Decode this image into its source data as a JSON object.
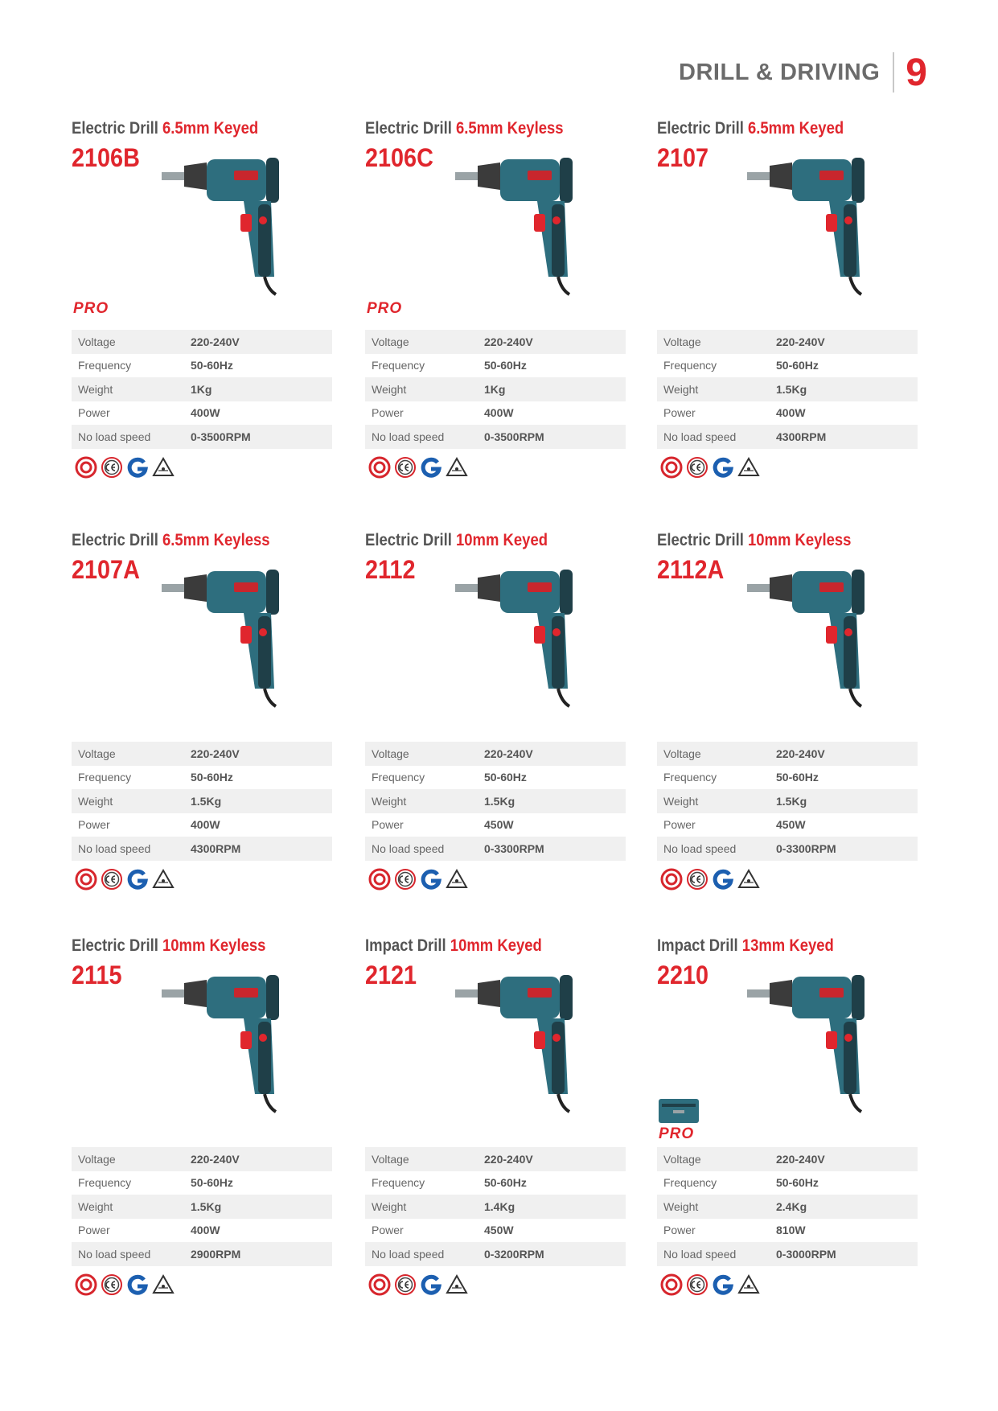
{
  "header": {
    "section_title": "DRILL & DRIVING",
    "page_number": "9"
  },
  "spec_labels": {
    "voltage": "Voltage",
    "frequency": "Frequency",
    "weight": "Weight",
    "power": "Power",
    "no_load_speed": "No load speed"
  },
  "pro_badge_text": "PRO",
  "products": [
    {
      "type": "Electric Drill",
      "spec": "6.5mm Keyed",
      "model": "2106B",
      "pro": true,
      "voltage": "220-240V",
      "frequency": "50-60Hz",
      "weight": "1Kg",
      "power": "400W",
      "no_load_speed": "0-3500RPM"
    },
    {
      "type": "Electric Drill",
      "spec": "6.5mm Keyless",
      "model": "2106C",
      "pro": true,
      "voltage": "220-240V",
      "frequency": "50-60Hz",
      "weight": "1Kg",
      "power": "400W",
      "no_load_speed": "0-3500RPM"
    },
    {
      "type": "Electric Drill",
      "spec": "6.5mm Keyed",
      "model": "2107",
      "pro": false,
      "voltage": "220-240V",
      "frequency": "50-60Hz",
      "weight": "1.5Kg",
      "power": "400W",
      "no_load_speed": "4300RPM"
    },
    {
      "type": "Electric Drill",
      "spec": "6.5mm Keyless",
      "model": "2107A",
      "pro": false,
      "voltage": "220-240V",
      "frequency": "50-60Hz",
      "weight": "1.5Kg",
      "power": "400W",
      "no_load_speed": "4300RPM"
    },
    {
      "type": "Electric Drill",
      "spec": "10mm Keyed",
      "model": "2112",
      "pro": false,
      "voltage": "220-240V",
      "frequency": "50-60Hz",
      "weight": "1.5Kg",
      "power": "450W",
      "no_load_speed": "0-3300RPM"
    },
    {
      "type": "Electric Drill",
      "spec": "10mm Keyless",
      "model": "2112A",
      "pro": false,
      "voltage": "220-240V",
      "frequency": "50-60Hz",
      "weight": "1.5Kg",
      "power": "450W",
      "no_load_speed": "0-3300RPM"
    },
    {
      "type": "Electric Drill",
      "spec": "10mm Keyless",
      "model": "2115",
      "pro": false,
      "voltage": "220-240V",
      "frequency": "50-60Hz",
      "weight": "1.5Kg",
      "power": "400W",
      "no_load_speed": "2900RPM"
    },
    {
      "type": "Impact Drill",
      "spec": "10mm Keyed",
      "model": "2121",
      "pro": false,
      "voltage": "220-240V",
      "frequency": "50-60Hz",
      "weight": "1.4Kg",
      "power": "450W",
      "no_load_speed": "0-3200RPM"
    },
    {
      "type": "Impact Drill",
      "spec": "13mm Keyed",
      "model": "2210",
      "pro": true,
      "voltage": "220-240V",
      "frequency": "50-60Hz",
      "weight": "2.4Kg",
      "power": "810W",
      "no_load_speed": "0-3000RPM"
    }
  ],
  "colors": {
    "accent": "#e0262d",
    "tool_body": "#2e6e7e",
    "tool_dark": "#1f3f48",
    "table_stripe": "#f0f0f0"
  },
  "icons": [
    "drill-icon",
    "ccc-cert-icon",
    "ce-cert-icon",
    "g-mark-cert-icon",
    "vde-cert-icon",
    "carry-case-icon"
  ]
}
